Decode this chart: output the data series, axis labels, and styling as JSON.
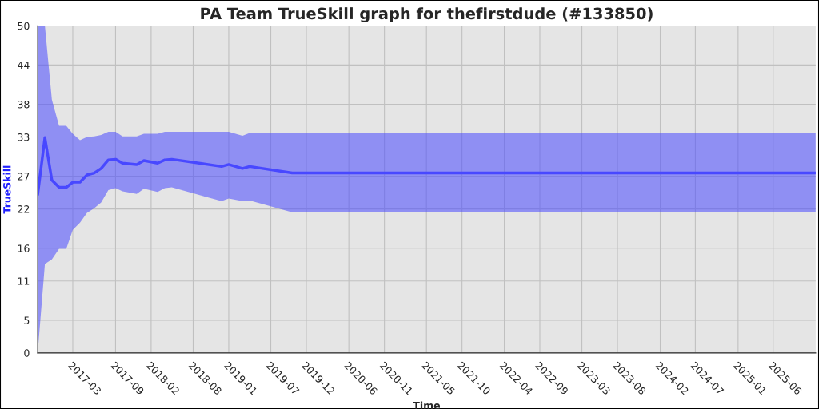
{
  "chart_data": {
    "type": "line",
    "title": "PA Team TrueSkill graph for thefirstdude (#133850)",
    "xlabel": "Time",
    "ylabel": "TrueSkill",
    "x": [
      "2016-10",
      "2016-11",
      "2016-12",
      "2017-01",
      "2017-02",
      "2017-03",
      "2017-04",
      "2017-05",
      "2017-06",
      "2017-07",
      "2017-08",
      "2017-09",
      "2017-10",
      "2017-12",
      "2018-01",
      "2018-03",
      "2018-04",
      "2018-05",
      "2018-12",
      "2019-01",
      "2019-03",
      "2019-04",
      "2019-10",
      "2025-12"
    ],
    "series": [
      {
        "color": "#4848ff",
        "values": [
          24.2,
          32.9,
          26.4,
          25.3,
          25.3,
          26.1,
          26.1,
          27.2,
          27.5,
          28.2,
          29.5,
          29.6,
          29.0,
          28.8,
          29.4,
          29.0,
          29.5,
          29.6,
          28.5,
          28.8,
          28.2,
          28.5,
          27.5,
          27.5
        ],
        "lower": [
          0,
          13.6,
          14.3,
          15.9,
          15.9,
          18.8,
          19.9,
          21.4,
          22.1,
          23.0,
          24.9,
          25.2,
          24.7,
          24.3,
          25.1,
          24.6,
          25.2,
          25.3,
          23.2,
          23.6,
          23.2,
          23.3,
          21.5,
          21.5
        ],
        "upper": [
          50,
          50,
          38.7,
          34.7,
          34.7,
          33.5,
          32.5,
          33.0,
          33.1,
          33.3,
          33.8,
          33.8,
          33.1,
          33.1,
          33.5,
          33.5,
          33.8,
          33.8,
          33.8,
          33.8,
          33.2,
          33.6,
          33.6,
          33.6
        ]
      }
    ],
    "xlim": [
      "2016-10",
      "2025-12"
    ],
    "xticks": [
      "2017-03",
      "2017-09",
      "2018-02",
      "2018-08",
      "2019-01",
      "2019-07",
      "2019-12",
      "2020-06",
      "2020-11",
      "2021-05",
      "2021-10",
      "2022-04",
      "2022-09",
      "2023-03",
      "2023-08",
      "2024-02",
      "2024-07",
      "2025-01",
      "2025-06"
    ],
    "ylim": [
      0,
      50
    ],
    "yticks": [
      0,
      5,
      11,
      16,
      22,
      27,
      33,
      38,
      44,
      50
    ],
    "grid": true,
    "legend": false
  }
}
